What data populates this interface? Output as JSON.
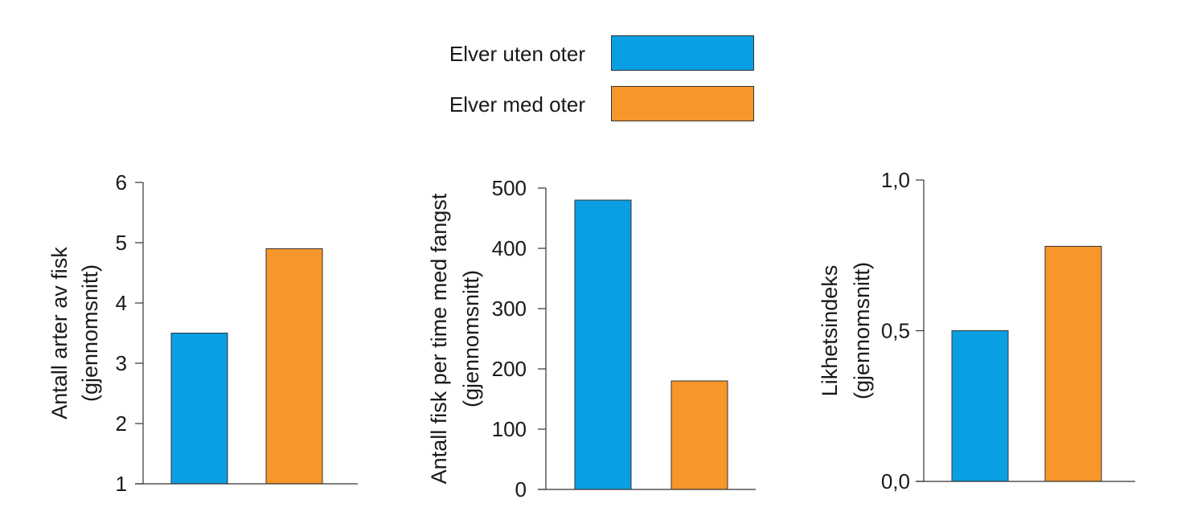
{
  "legend": {
    "items": [
      {
        "label": "Elver uten oter",
        "color": "#0a9fe3"
      },
      {
        "label": "Elver med oter",
        "color": "#f7962a"
      }
    ]
  },
  "chart_data": [
    {
      "type": "bar",
      "categories": [
        "Elver uten oter",
        "Elver med oter"
      ],
      "values": [
        3.5,
        4.9
      ],
      "colors": [
        "#0a9fe3",
        "#f7962a"
      ],
      "ylabel_lines": [
        "Antall arter av fisk",
        "(gjennomsnitt)"
      ],
      "yticks": [
        1,
        2,
        3,
        4,
        5,
        6
      ],
      "ytick_labels": [
        "1",
        "2",
        "3",
        "4",
        "5",
        "6"
      ],
      "ylim": [
        1,
        6
      ]
    },
    {
      "type": "bar",
      "categories": [
        "Elver uten oter",
        "Elver med oter"
      ],
      "values": [
        480,
        180
      ],
      "colors": [
        "#0a9fe3",
        "#f7962a"
      ],
      "ylabel_lines": [
        "Antall fisk per time med fangst",
        "(gjennomsnitt)"
      ],
      "yticks": [
        0,
        100,
        200,
        300,
        400,
        500
      ],
      "ytick_labels": [
        "0",
        "100",
        "200",
        "300",
        "400",
        "500"
      ],
      "ylim": [
        0,
        500
      ]
    },
    {
      "type": "bar",
      "categories": [
        "Elver uten oter",
        "Elver med oter"
      ],
      "values": [
        0.5,
        0.78
      ],
      "colors": [
        "#0a9fe3",
        "#f7962a"
      ],
      "ylabel_lines": [
        "Likhetsindeks",
        "(gjennomsnitt)"
      ],
      "yticks": [
        0,
        0.5,
        1.0
      ],
      "ytick_labels": [
        "0,0",
        "0,5",
        "1,0"
      ],
      "ylim": [
        0,
        1.0
      ]
    }
  ]
}
